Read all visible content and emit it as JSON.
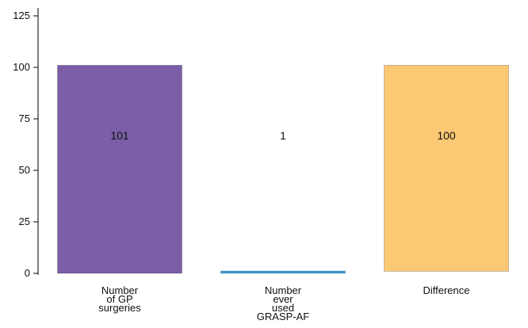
{
  "chart_data": {
    "type": "bar",
    "subtype": "waterfall",
    "title": "",
    "xlabel": "",
    "ylabel": "",
    "ylim": [
      0,
      125
    ],
    "yticks": [
      0,
      25,
      50,
      75,
      100,
      125
    ],
    "grid": false,
    "legend": "none",
    "bars": [
      {
        "category": [
          "Number",
          "of GP",
          "surgeries"
        ],
        "base": 0,
        "value": 101,
        "label": "101",
        "color": "#7b5ea7"
      },
      {
        "category": [
          "Number",
          "ever",
          "used",
          "GRASP-AF"
        ],
        "base": 0,
        "value": 1,
        "label": "1",
        "color": "#3aa0de"
      },
      {
        "category": [
          "Difference"
        ],
        "base": 1,
        "value": 100,
        "label": "100",
        "color": "#fbc874"
      }
    ]
  }
}
